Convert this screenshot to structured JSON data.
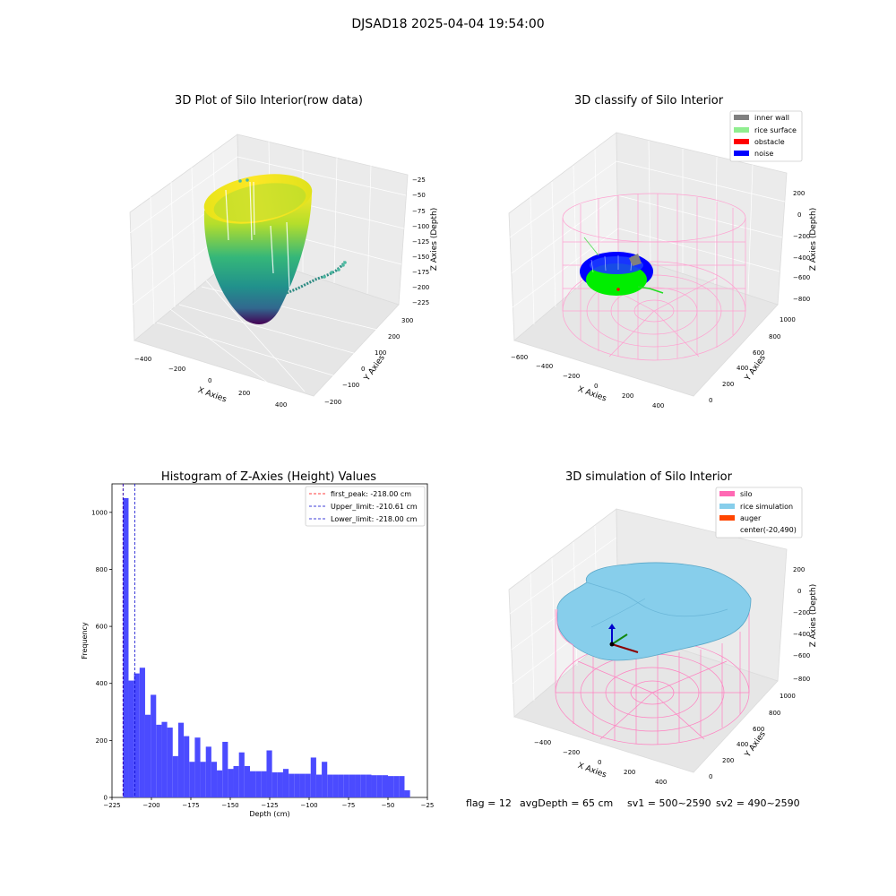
{
  "figure_title": "DJSAD18 2025-04-04 19:54:00",
  "status_line": {
    "flag": "flag = 12",
    "avg_depth": "avgDepth = 65 cm",
    "sv1": "sv1 = 500~2590",
    "sv2": "sv2 = 490~2590"
  },
  "colors": {
    "histogram_bar": "#4b4bff",
    "first_peak": "#ff0000",
    "limits": "#0000cc",
    "inner_wall": "#808080",
    "rice_surface": "#90ee90",
    "obstacle": "#ff0000",
    "noise": "#0000ff",
    "silo": "#ff69b4",
    "rice_simulation": "#87ceeb",
    "auger": "#ff4500"
  },
  "panels": {
    "raw": {
      "title": "3D Plot of Silo Interior(row data)",
      "xlabel": "X Axies",
      "ylabel": "Y Axies",
      "zlabel": "Z Axies (Depth)",
      "xticks": [
        "−400",
        "−200",
        "0",
        "200",
        "400"
      ],
      "yticks": [
        "300",
        "200",
        "100",
        "0",
        "−100",
        "−200"
      ],
      "zticks": [
        "−25",
        "−50",
        "−75",
        "−100",
        "−125",
        "−150",
        "−175",
        "−200",
        "−225"
      ]
    },
    "classify": {
      "title": "3D classify of Silo Interior",
      "xlabel": "X Axies",
      "ylabel": "Y Axies",
      "zlabel": "Z Axies (Depth)",
      "xticks": [
        "−600",
        "−400",
        "−200",
        "0",
        "200",
        "400"
      ],
      "yticks": [
        "1000",
        "800",
        "600",
        "400",
        "200",
        "0"
      ],
      "zticks": [
        "200",
        "0",
        "−200",
        "−400",
        "−600",
        "−800"
      ],
      "legend": [
        {
          "label": "inner wall",
          "color": "#808080"
        },
        {
          "label": "rice surface",
          "color": "#90ee90"
        },
        {
          "label": "obstacle",
          "color": "#ff0000"
        },
        {
          "label": "noise",
          "color": "#0000ff"
        }
      ]
    },
    "simulation": {
      "title": "3D simulation of Silo Interior",
      "xlabel": "X Axies",
      "ylabel": "Y Axies",
      "zlabel": "Z Axies (Depth)",
      "xticks": [
        "−400",
        "−200",
        "0",
        "200",
        "400"
      ],
      "yticks": [
        "1000",
        "800",
        "600",
        "400",
        "200",
        "0"
      ],
      "zticks": [
        "200",
        "0",
        "−200",
        "−400",
        "−600",
        "−800"
      ],
      "legend": [
        {
          "label": "silo",
          "color": "#ff69b4"
        },
        {
          "label": "rice simulation",
          "color": "#87ceeb"
        },
        {
          "label": "auger",
          "color": "#ff4500"
        },
        {
          "label": "center(-20,490)",
          "color": ""
        }
      ]
    }
  },
  "chart_data": [
    {
      "type": "bar",
      "title": "Histogram of Z-Axies (Height) Values",
      "xlabel": "Depth (cm)",
      "ylabel": "Frequency",
      "xlim": [
        -225,
        -25
      ],
      "ylim": [
        0,
        1100
      ],
      "xticks": [
        -225,
        -200,
        -175,
        -150,
        -125,
        -100,
        -75,
        -50,
        -25
      ],
      "xtick_labels": [
        "−225",
        "−200",
        "−175",
        "−150",
        "−125",
        "−100",
        "−75",
        "−50",
        "−25"
      ],
      "yticks": [
        0,
        200,
        400,
        600,
        800,
        1000
      ],
      "bin_edges": [
        -218,
        -214.5,
        -211,
        -207.5,
        -204,
        -200.5,
        -197,
        -193.5,
        -190,
        -186.5,
        -183,
        -179.5,
        -176,
        -172.5,
        -169,
        -165.5,
        -162,
        -158.5,
        -155,
        -151.5,
        -148,
        -144.5,
        -141,
        -137.5,
        -134,
        -130.5,
        -127,
        -123.5,
        -120,
        -116.5,
        -113,
        -109.5,
        -106,
        -102.5,
        -99,
        -95.5,
        -92,
        -88.5,
        -85,
        -81.5,
        -78,
        -74.5,
        -71,
        -67.5,
        -64,
        -60.5,
        -57,
        -53.5,
        -50,
        -46.5,
        -43,
        -39.5,
        -36
      ],
      "values": [
        1050,
        410,
        435,
        455,
        290,
        360,
        255,
        265,
        245,
        145,
        262,
        215,
        125,
        210,
        125,
        178,
        125,
        95,
        195,
        100,
        110,
        158,
        110,
        92,
        92,
        92,
        165,
        88,
        88,
        100,
        83,
        83,
        83,
        83,
        140,
        80,
        125,
        80,
        80,
        80,
        80,
        80,
        80,
        80,
        80,
        78,
        78,
        78,
        75,
        75,
        75,
        25
      ],
      "vlines": [
        {
          "label": "first_peak: -218.00 cm",
          "x": -218,
          "color": "#ff0000"
        },
        {
          "label": "Upper_limit: -210.61 cm",
          "x": -210.61,
          "color": "#0000cc"
        },
        {
          "label": "Lower_limit: -218.00 cm",
          "x": -218,
          "color": "#0000cc"
        }
      ],
      "legend_position": "top-right"
    }
  ]
}
